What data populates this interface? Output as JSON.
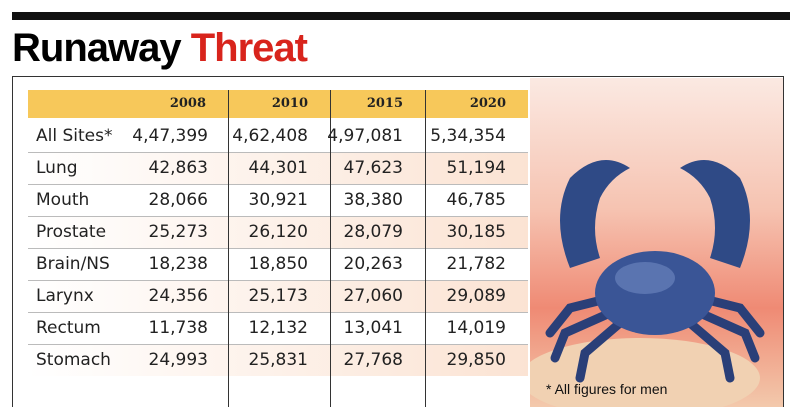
{
  "header": {
    "title_black": "Runaway",
    "title_red": "Threat"
  },
  "table": {
    "columns": [
      "2008",
      "2010",
      "2015",
      "2020"
    ],
    "rows": [
      {
        "label": "All Sites*",
        "values": [
          "4,47,399",
          "4,62,408",
          "4,97,081",
          "5,34,354"
        ]
      },
      {
        "label": "Lung",
        "values": [
          "42,863",
          "44,301",
          "47,623",
          "51,194"
        ]
      },
      {
        "label": "Mouth",
        "values": [
          "28,066",
          "30,921",
          "38,380",
          "46,785"
        ]
      },
      {
        "label": "Prostate",
        "values": [
          "25,273",
          "26,120",
          "28,079",
          "30,185"
        ]
      },
      {
        "label": "Brain/NS",
        "values": [
          "18,238",
          "18,850",
          "20,263",
          "21,782"
        ]
      },
      {
        "label": "Larynx",
        "values": [
          "24,356",
          "25,173",
          "27,060",
          "29,089"
        ]
      },
      {
        "label": "Rectum",
        "values": [
          "11,738",
          "12,132",
          "13,041",
          "14,019"
        ]
      },
      {
        "label": "Stomach",
        "values": [
          "24,993",
          "25,831",
          "27,768",
          "29,850"
        ]
      }
    ]
  },
  "footnote": "* All figures for men"
}
